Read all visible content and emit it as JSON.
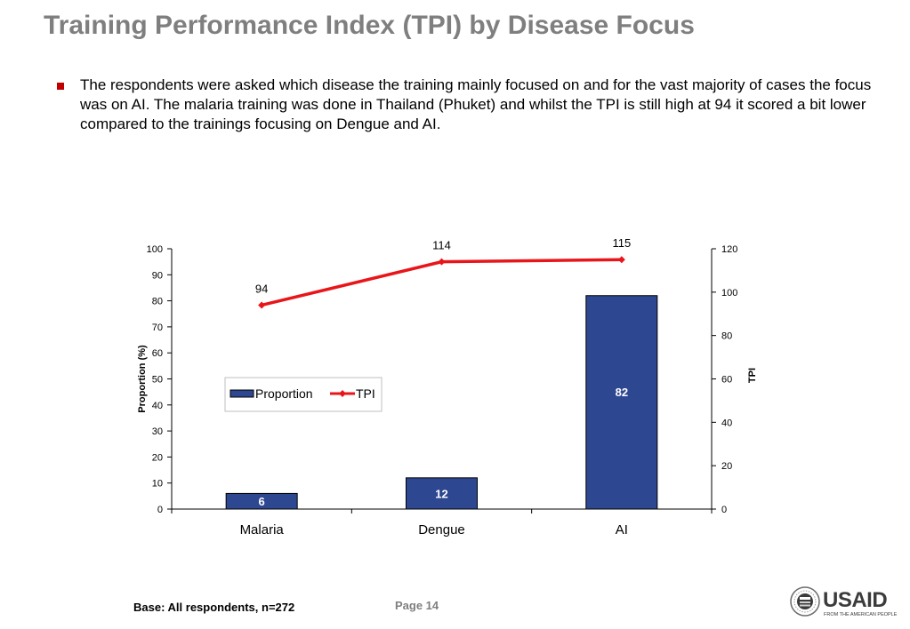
{
  "slide": {
    "title": "Training Performance Index (TPI) by Disease Focus",
    "bullet": "The respondents were asked which disease the training mainly focused on and for the vast majority of cases the focus was on AI. The malaria training was done in Thailand (Phuket) and whilst the TPI is still high at 94 it scored a bit lower compared to the trainings focusing on Dengue and AI.",
    "base_note": "Base: All respondents, n=272",
    "page_label": "Page 14",
    "logo": {
      "icon": "usaid-seal-icon",
      "wordmark": "USAID",
      "tagline": "FROM THE AMERICAN PEOPLE"
    }
  },
  "chart_data": {
    "type": "bar",
    "categories": [
      "Malaria",
      "Dengue",
      "AI"
    ],
    "series": [
      {
        "name": "Proportion",
        "type": "bar",
        "axis": "left",
        "values": [
          6,
          12,
          82
        ],
        "color": "#2e4791"
      },
      {
        "name": "TPI",
        "type": "line",
        "axis": "right",
        "values": [
          94,
          114,
          115
        ],
        "color": "#e8161b"
      }
    ],
    "ylabel": "Proportion (%)",
    "y2label": "TPI",
    "ylim": [
      0,
      100
    ],
    "y2lim": [
      0,
      120
    ],
    "yticks": [
      0,
      10,
      20,
      30,
      40,
      50,
      60,
      70,
      80,
      90,
      100
    ],
    "y2ticks": [
      0,
      20,
      40,
      60,
      80,
      100,
      120
    ],
    "grid": false,
    "legend": "center-left"
  }
}
